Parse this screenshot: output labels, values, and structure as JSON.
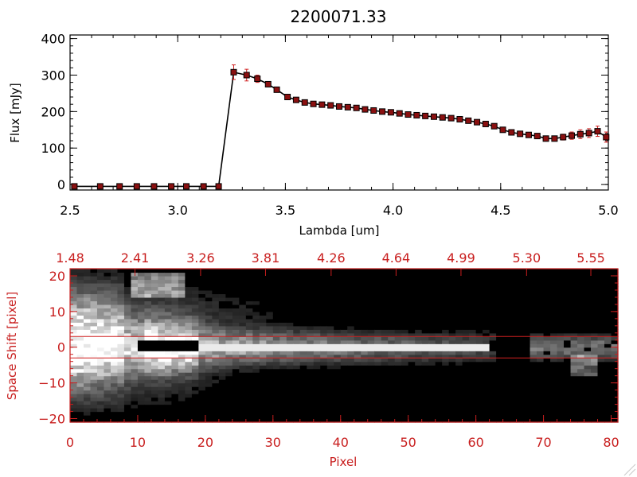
{
  "chart_data": [
    {
      "type": "line",
      "title": "2200071.33",
      "xlabel": "Lambda [um]",
      "ylabel": "Flux [mJy]",
      "xlim": [
        2.5,
        5.0
      ],
      "ylim": [
        -15,
        410
      ],
      "xticks": [
        2.5,
        3.0,
        3.5,
        4.0,
        4.5,
        5.0
      ],
      "xtick_labels": [
        "2.5",
        "3.0",
        "3.5",
        "4.0",
        "4.5",
        "5.0"
      ],
      "yticks": [
        0,
        100,
        200,
        300,
        400
      ],
      "ytick_labels": [
        "0",
        "100",
        "200",
        "300",
        "400"
      ],
      "grid": false,
      "colors": {
        "line": "#000000",
        "marker": "#8a1010",
        "errorbar": "#d02020",
        "frame": "#000000"
      },
      "x": [
        2.52,
        2.64,
        2.73,
        2.81,
        2.89,
        2.97,
        3.04,
        3.12,
        3.19,
        3.26,
        3.32,
        3.37,
        3.42,
        3.46,
        3.51,
        3.55,
        3.59,
        3.63,
        3.67,
        3.71,
        3.75,
        3.79,
        3.83,
        3.87,
        3.91,
        3.95,
        3.99,
        4.03,
        4.07,
        4.11,
        4.15,
        4.19,
        4.23,
        4.27,
        4.31,
        4.35,
        4.39,
        4.43,
        4.47,
        4.51,
        4.55,
        4.59,
        4.63,
        4.67,
        4.71,
        4.75,
        4.79,
        4.83,
        4.87,
        4.91,
        4.95,
        4.99
      ],
      "y": [
        -5,
        -5,
        -5,
        -5,
        -5,
        -5,
        -5,
        -5,
        -5,
        308,
        300,
        290,
        275,
        260,
        240,
        232,
        225,
        221,
        219,
        217,
        214,
        212,
        210,
        206,
        203,
        200,
        198,
        195,
        192,
        190,
        188,
        186,
        184,
        182,
        179,
        175,
        171,
        166,
        160,
        150,
        143,
        139,
        136,
        133,
        126,
        126,
        130,
        134,
        138,
        141,
        146,
        130
      ],
      "yerr": [
        2,
        2,
        2,
        2,
        2,
        2,
        2,
        2,
        2,
        20,
        16,
        10,
        6,
        5,
        5,
        4,
        4,
        4,
        4,
        4,
        4,
        4,
        4,
        4,
        4,
        4,
        4,
        4,
        4,
        4,
        4,
        4,
        4,
        4,
        4,
        4,
        4,
        4,
        4,
        5,
        5,
        5,
        5,
        6,
        6,
        6,
        8,
        10,
        12,
        12,
        14,
        14
      ]
    },
    {
      "type": "heatmap",
      "xlabel": "Pixel",
      "ylabel": "Space Shift [pixel]",
      "xlim": [
        0,
        81
      ],
      "ylim": [
        -21,
        22
      ],
      "xticks": [
        0,
        10,
        20,
        30,
        40,
        50,
        60,
        70,
        80
      ],
      "xtick_labels": [
        "0",
        "10",
        "20",
        "30",
        "40",
        "50",
        "60",
        "70",
        "80"
      ],
      "yticks": [
        -20,
        -10,
        0,
        10,
        20
      ],
      "ytick_labels": [
        "−20",
        "−10",
        "0",
        "10",
        "20"
      ],
      "top_xticks": [
        0,
        9.6,
        19.3,
        28.9,
        38.6,
        48.2,
        57.8,
        67.5,
        77
      ],
      "top_xtick_labels": [
        "1.48",
        "2.41",
        "3.26",
        "3.81",
        "4.26",
        "4.64",
        "4.99",
        "5.30",
        "5.55"
      ],
      "aperture_rows": [
        -3,
        3
      ],
      "colorscale": "grayscale",
      "colors": {
        "axis": "#c81e1e",
        "aperture": "#d02020"
      }
    }
  ]
}
